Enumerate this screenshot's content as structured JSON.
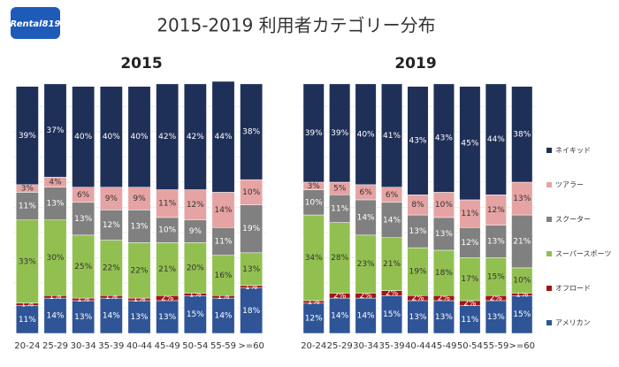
{
  "header": {
    "title": "2015-2019 利用者カテゴリー分布",
    "logo": "Rental819"
  },
  "chart_data": [
    {
      "type": "stacked-bar",
      "title": "2015",
      "categories": [
        "20-24",
        "25-29",
        "30-34",
        "35-39",
        "40-44",
        "45-49",
        "50-54",
        "55-59",
        ">=60"
      ],
      "ylim": [
        0,
        100
      ],
      "series": [
        {
          "name": "アメリカン",
          "color": "#2f5597",
          "values": [
            11,
            14,
            13,
            14,
            13,
            13,
            15,
            14,
            18
          ],
          "value_labels": [
            "11%",
            "14%",
            "13%",
            "14%",
            "13%",
            "13%",
            "15%",
            "14%",
            "18%"
          ]
        },
        {
          "name": "オフロード",
          "color": "#a31515",
          "values": [
            1,
            1,
            1,
            1,
            1,
            2,
            1,
            1,
            1
          ],
          "value_labels": [
            "1%",
            "1%",
            "1%",
            "1%",
            "1%",
            "2%",
            "1%",
            "1%",
            "1%"
          ]
        },
        {
          "name": "スーパースポーツ",
          "color": "#92c050",
          "values": [
            33,
            30,
            25,
            22,
            22,
            21,
            20,
            16,
            13
          ],
          "value_labels": [
            "33%",
            "30%",
            "25%",
            "22%",
            "22%",
            "21%",
            "20%",
            "16%",
            "13%"
          ]
        },
        {
          "name": "スクーター",
          "color": "#808080",
          "values": [
            11,
            13,
            13,
            12,
            13,
            10,
            9,
            11,
            19
          ],
          "value_labels": [
            "11%",
            "13%",
            "13%",
            "12%",
            "13%",
            "10%",
            "9%",
            "11%",
            "19%"
          ]
        },
        {
          "name": "ツアラー",
          "color": "#e6a3a3",
          "values": [
            3,
            4,
            6,
            9,
            9,
            11,
            12,
            14,
            10
          ],
          "value_labels": [
            "3%",
            "4%",
            "6%",
            "9%",
            "9%",
            "11%",
            "12%",
            "14%",
            "10%"
          ]
        },
        {
          "name": "ネイキッド",
          "color": "#1f3058",
          "values": [
            39,
            37,
            40,
            40,
            40,
            42,
            42,
            44,
            38
          ],
          "value_labels": [
            "39%",
            "37%",
            "40%",
            "40%",
            "40%",
            "42%",
            "42%",
            "44%",
            "38%"
          ]
        }
      ]
    },
    {
      "type": "stacked-bar",
      "title": "2019",
      "categories": [
        "20-24",
        "25-29",
        "30-34",
        "35-39",
        "40-44",
        "45-49",
        "50-54",
        "55-59",
        ">=60"
      ],
      "ylim": [
        0,
        100
      ],
      "series": [
        {
          "color": "#2f5597",
          "values": [
            12,
            14,
            14,
            15,
            13,
            13,
            11,
            13,
            15
          ],
          "value_labels": [
            "12%",
            "14%",
            "14%",
            "15%",
            "13%",
            "13%",
            "11%",
            "13%",
            "15%"
          ]
        },
        {
          "color": "#a31515",
          "values": [
            1,
            2,
            2,
            2,
            2,
            2,
            2,
            2,
            1
          ],
          "value_labels": [
            "1%",
            "2%",
            "2%",
            "2%",
            "2%",
            "2%",
            "2%",
            "2%",
            "1%"
          ]
        },
        {
          "color": "#92c050",
          "values": [
            34,
            28,
            23,
            21,
            19,
            18,
            17,
            15,
            10
          ],
          "value_labels": [
            "34%",
            "28%",
            "23%",
            "21%",
            "19%",
            "18%",
            "17%",
            "15%",
            "10%"
          ]
        },
        {
          "color": "#808080",
          "values": [
            10,
            11,
            14,
            14,
            13,
            13,
            12,
            13,
            21
          ],
          "value_labels": [
            "10%",
            "11%",
            "14%",
            "14%",
            "13%",
            "13%",
            "12%",
            "13%",
            "21%"
          ]
        },
        {
          "color": "#e6a3a3",
          "values": [
            3,
            5,
            6,
            6,
            8,
            10,
            11,
            12,
            13
          ],
          "value_labels": [
            "3%",
            "5%",
            "6%",
            "6%",
            "8%",
            "10%",
            "11%",
            "12%",
            "13%"
          ]
        },
        {
          "color": "#1f3058",
          "values": [
            39,
            39,
            40,
            41,
            43,
            43,
            45,
            44,
            38
          ],
          "value_labels": [
            "39%",
            "39%",
            "40%",
            "41%",
            "43%",
            "43%",
            "45%",
            "44%",
            "38%"
          ]
        }
      ]
    }
  ]
}
